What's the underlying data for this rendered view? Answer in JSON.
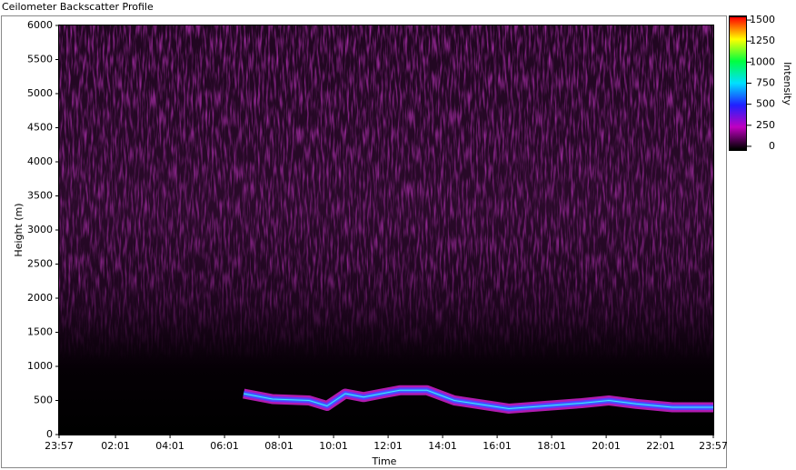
{
  "chart_data": {
    "type": "line",
    "title": "Ceilometer Backscatter Profile",
    "xlabel": "Time",
    "ylabel": "Height (m)",
    "x": [
      6.77,
      7.83,
      9.17,
      9.83,
      10.5,
      11.17,
      11.83,
      12.5,
      13.5,
      13.83,
      14.5,
      15.83,
      16.5,
      17.83,
      19.17,
      20.17,
      21.17,
      22.5,
      24
    ],
    "series": [
      {
        "color": "#3a6cff",
        "values": [
          600,
          520,
          500,
          420,
          600,
          550,
          600,
          650,
          650,
          600,
          500,
          420,
          380,
          420,
          460,
          500,
          450,
          400,
          400
        ]
      }
    ],
    "xlim": [
      0,
      24
    ],
    "xticks": [
      {
        "value": 0,
        "label": "23:57"
      },
      {
        "value": 2.07,
        "label": "02:01"
      },
      {
        "value": 4.07,
        "label": "04:01"
      },
      {
        "value": 6.07,
        "label": "06:01"
      },
      {
        "value": 8.07,
        "label": "08:01"
      },
      {
        "value": 10.07,
        "label": "10:01"
      },
      {
        "value": 12.07,
        "label": "12:01"
      },
      {
        "value": 14.07,
        "label": "14:01"
      },
      {
        "value": 16.07,
        "label": "16:01"
      },
      {
        "value": 18.07,
        "label": "18:01"
      },
      {
        "value": 20.07,
        "label": "20:01"
      },
      {
        "value": 22.07,
        "label": "22:01"
      },
      {
        "value": 24,
        "label": "23:57"
      }
    ],
    "ylim": [
      0,
      6000
    ],
    "yticks": [
      0,
      500,
      1000,
      1500,
      2000,
      2500,
      3000,
      3500,
      4000,
      4500,
      5000,
      5500,
      6000
    ],
    "colorbar": {
      "label": "Intensity",
      "lim": [
        -33,
        1533
      ],
      "ticks": [
        0,
        250,
        500,
        750,
        1000,
        1250,
        1500
      ],
      "colors": [
        "#000000",
        "#c000c0",
        "#2020ff",
        "#00e0ff",
        "#00ff40",
        "#ffff00",
        "#ff0000"
      ]
    }
  }
}
